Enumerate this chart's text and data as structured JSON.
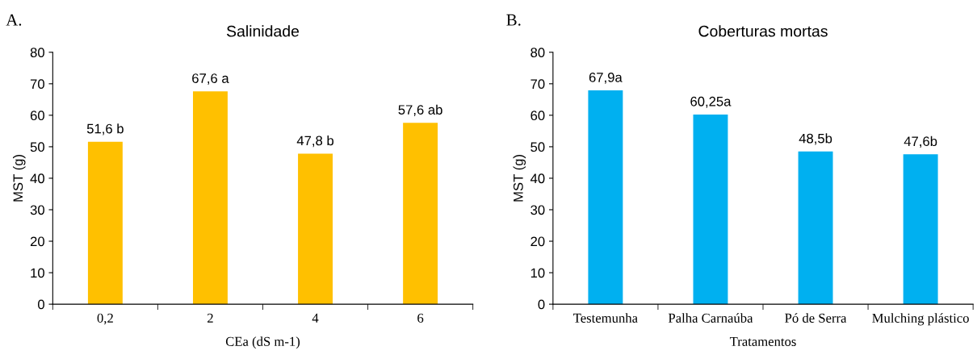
{
  "chart_data": [
    {
      "type": "bar",
      "title": "Salinidade",
      "xlabel": "CEa (dS m-1)",
      "ylabel": "MST (g)",
      "annotations": [
        "A."
      ],
      "categories": [
        "0,2",
        "2",
        "4",
        "6"
      ],
      "values": [
        51.6,
        67.6,
        47.8,
        57.6
      ],
      "color": "#ffc000",
      "value_labels": [
        "51,6 b",
        "67,6 a",
        "47,8 b",
        "57,6 ab"
      ],
      "ylim": [
        0,
        80
      ],
      "yticks": [
        0,
        10,
        20,
        30,
        40,
        50,
        60,
        70,
        80
      ],
      "grid": false
    },
    {
      "type": "bar",
      "title": "Coberturas mortas",
      "xlabel": "Tratamentos",
      "ylabel": "MST (g)",
      "annotations": [
        "B."
      ],
      "categories": [
        "Testemunha",
        "Palha Carnaúba",
        "Pó de Serra",
        "Mulching plástico"
      ],
      "values": [
        67.9,
        60.25,
        48.5,
        47.6
      ],
      "color": "#00b0f0",
      "value_labels": [
        "67,9a",
        "60,25a",
        "48,5b",
        "47,6b"
      ],
      "ylim": [
        0,
        80
      ],
      "yticks": [
        0,
        10,
        20,
        30,
        40,
        50,
        60,
        70,
        80
      ],
      "grid": false
    }
  ]
}
